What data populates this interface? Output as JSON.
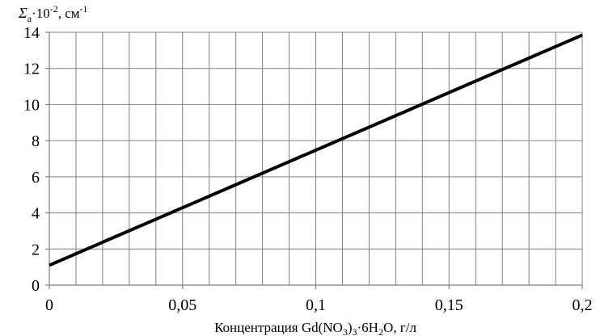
{
  "chart_data": {
    "type": "line",
    "title": "",
    "ylabel": {
      "symbol": "Σ",
      "subscript": "a",
      "factor": "·10",
      "factor_exp": "-2",
      "unit": ", см",
      "unit_exp": "-1"
    },
    "xlabel": {
      "text1": "Концентрация Gd(NO",
      "sub1": "3",
      "text2": ")",
      "sub2": "3",
      "text3": "·6H",
      "sub3": "2",
      "text4": "O, г/л"
    },
    "xlim": [
      0,
      0.2
    ],
    "ylim": [
      0,
      14
    ],
    "x_ticks": [
      "0",
      "0,05",
      "0,1",
      "0,15",
      "0,2"
    ],
    "y_ticks": [
      "0",
      "2",
      "4",
      "6",
      "8",
      "10",
      "12",
      "14"
    ],
    "grid": true,
    "legend": "none",
    "series": [
      {
        "x": [
          0,
          0.2
        ],
        "y": [
          1.1,
          13.85
        ],
        "color": "#000000"
      }
    ]
  }
}
